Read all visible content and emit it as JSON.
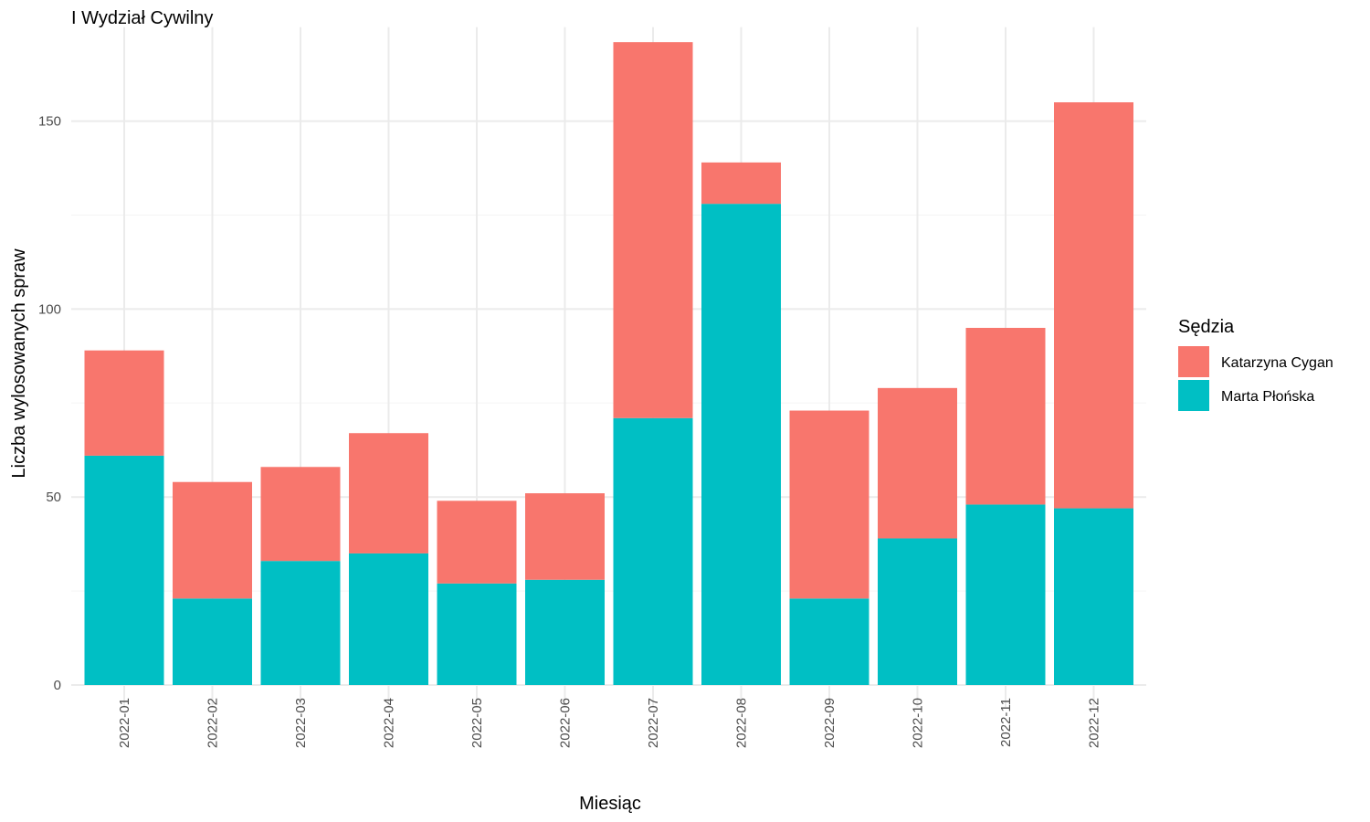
{
  "chart_data": {
    "type": "bar",
    "stacked": true,
    "title": "I Wydział Cywilny",
    "xlabel": "Miesiąc",
    "ylabel": "Liczba wylosowanych spraw",
    "ylim": [
      0,
      175
    ],
    "yticks": [
      0,
      50,
      100,
      150
    ],
    "grid": true,
    "legend": {
      "title": "Sędzia",
      "position": "right"
    },
    "categories": [
      "2022-01",
      "2022-02",
      "2022-03",
      "2022-04",
      "2022-05",
      "2022-06",
      "2022-07",
      "2022-08",
      "2022-09",
      "2022-10",
      "2022-11",
      "2022-12"
    ],
    "series": [
      {
        "name": "Marta Płońska",
        "color": "#00BFC4",
        "values": [
          61,
          23,
          33,
          35,
          27,
          28,
          71,
          128,
          23,
          39,
          48,
          47
        ]
      },
      {
        "name": "Katarzyna Cygan",
        "color": "#F8766D",
        "values": [
          28,
          31,
          25,
          32,
          22,
          23,
          100,
          11,
          50,
          40,
          47,
          108
        ]
      }
    ],
    "legend_order": [
      "Katarzyna Cygan",
      "Marta Płońska"
    ]
  }
}
